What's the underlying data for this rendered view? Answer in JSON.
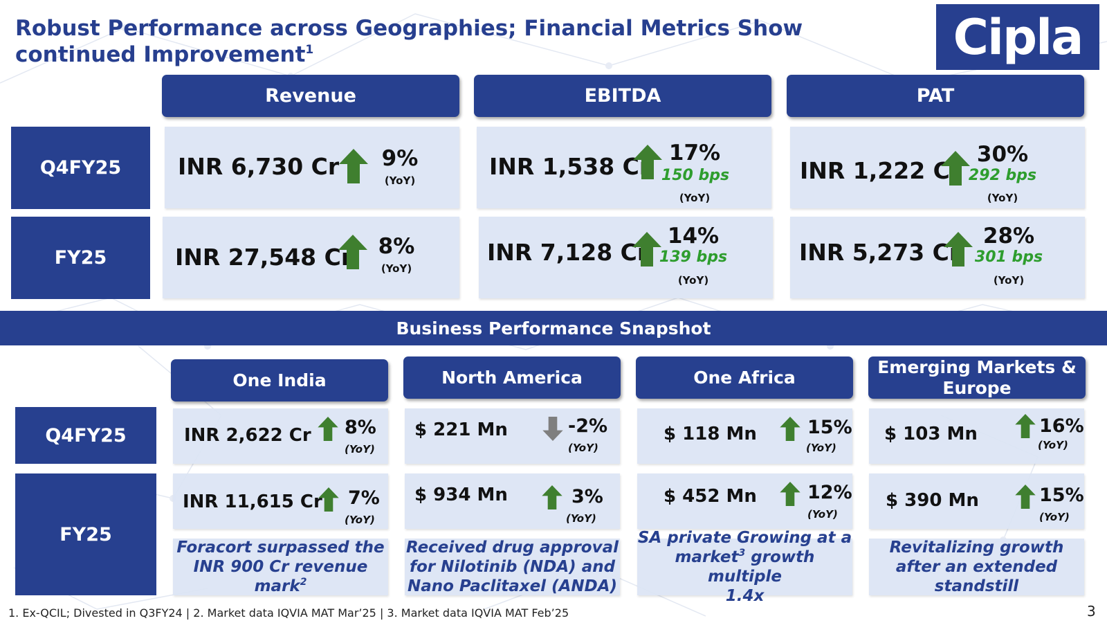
{
  "title": "Robust Performance across Geographies; Financial Metrics Show continued Improvement",
  "title_sup": "1",
  "logo_text": "Cipla",
  "metrics": {
    "headers": [
      "Revenue",
      "EBITDA",
      "PAT"
    ],
    "rows": [
      {
        "label": "Q4FY25",
        "cells": [
          {
            "value": "INR 6,730 Cr",
            "pct": "9%",
            "bps": "",
            "yoy": "(YoY)",
            "direction": "up"
          },
          {
            "value": "INR 1,538 Cr",
            "pct": "17%",
            "bps": "150 bps",
            "yoy": "(YoY)",
            "direction": "up"
          },
          {
            "value": "INR 1,222 Cr",
            "pct": "30%",
            "bps": "292 bps",
            "yoy": "(YoY)",
            "direction": "up"
          }
        ]
      },
      {
        "label": "FY25",
        "cells": [
          {
            "value": "INR 27,548 Cr",
            "pct": "8%",
            "bps": "",
            "yoy": "(YoY)",
            "direction": "up"
          },
          {
            "value": "INR 7,128 Cr",
            "pct": "14%",
            "bps": "139 bps",
            "yoy": "(YoY)",
            "direction": "up"
          },
          {
            "value": "INR 5,273 Cr",
            "pct": "28%",
            "bps": "301 bps",
            "yoy": "(YoY)",
            "direction": "up"
          }
        ]
      }
    ]
  },
  "banner": "Business Performance Snapshot",
  "business": {
    "headers": [
      "One India",
      "North America",
      "One Africa",
      "Emerging Markets & Europe"
    ],
    "row_labels": [
      "Q4FY25",
      "FY25"
    ],
    "q4": [
      {
        "value": "INR 2,622 Cr",
        "pct": "8%",
        "yoy": "(YoY)",
        "direction": "up"
      },
      {
        "value": "$ 221 Mn",
        "pct": "-2%",
        "yoy": "(YoY)",
        "direction": "down"
      },
      {
        "value": "$ 118 Mn",
        "pct": "15%",
        "yoy": "(YoY)",
        "direction": "up"
      },
      {
        "value": "$ 103 Mn",
        "pct": "16%",
        "yoy": "(YoY)",
        "direction": "up"
      }
    ],
    "fy": [
      {
        "value": "INR 11,615 Cr",
        "pct": "7%",
        "yoy": "(YoY)",
        "direction": "up"
      },
      {
        "value": "$ 934 Mn",
        "pct": "3%",
        "yoy": "(YoY)",
        "direction": "up"
      },
      {
        "value": "$ 452 Mn",
        "pct": "12%",
        "yoy": "(YoY)",
        "direction": "up"
      },
      {
        "value": "$ 390 Mn",
        "pct": "15%",
        "yoy": "(YoY)",
        "direction": "up"
      }
    ],
    "notes": {
      "india_1": "Foracort surpassed the",
      "india_2": "INR 900 Cr revenue mark",
      "india_sup": "2",
      "na": "Received drug approval for Nilotinib (NDA) and Nano Paclitaxel (ANDA)",
      "africa_1": "SA private Growing at a",
      "africa_2a": "market",
      "africa_sup": "3",
      "africa_2b": " growth multiple",
      "africa_3": "1.4x",
      "eme": "Revitalizing growth after an extended standstill"
    }
  },
  "footnote": "1. Ex-QCIL; Divested in Q3FY24 | 2. Market data IQVIA MAT Mar’25 | 3. Market data IQVIA MAT Feb’25",
  "page_number": "3",
  "colors": {
    "brand_blue": "#27408f",
    "cell_bg": "#dce4f4",
    "up_green": "#3f7f2f",
    "down_grey": "#7f7f7f",
    "bps_green": "#2e9d2e"
  }
}
